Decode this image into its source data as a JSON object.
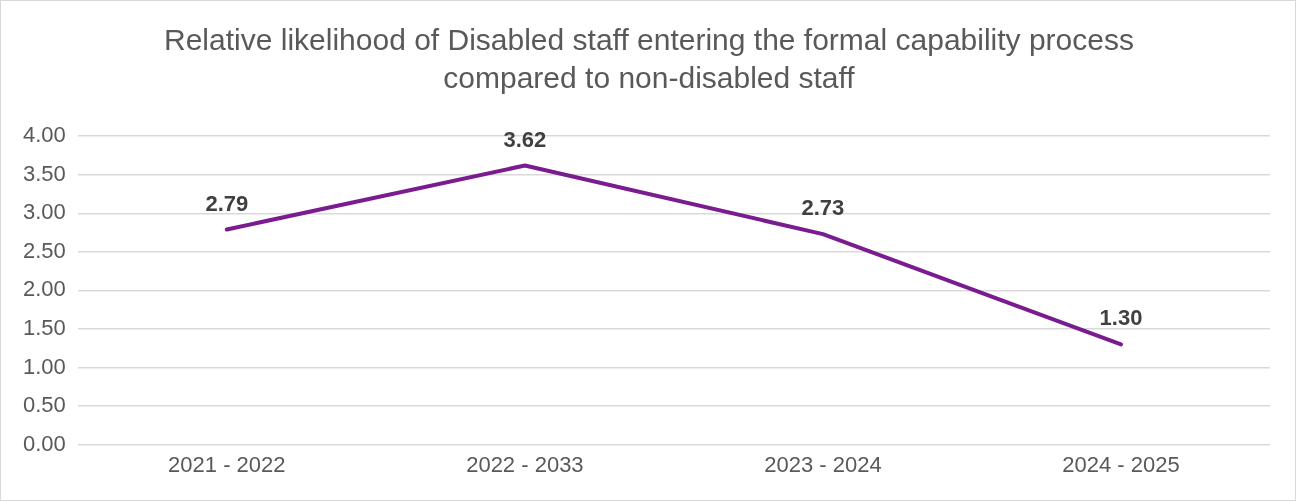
{
  "chart_data": {
    "type": "line",
    "title": "Relative likelihood of Disabled staff entering the formal capability process compared to non-disabled staff",
    "categories": [
      "2021 - 2022",
      "2022 - 2033",
      "2023 - 2024",
      "2024 - 2025"
    ],
    "series": [
      {
        "color": "#7a1b8f",
        "values": [
          2.79,
          3.62,
          2.73,
          1.3
        ]
      }
    ],
    "value_labels": [
      "2.79",
      "3.62",
      "2.73",
      "1.30"
    ],
    "ylim": [
      0,
      4
    ],
    "yticks": [
      {
        "value": 0,
        "label": "0.00"
      },
      {
        "value": 0.5,
        "label": "0.50"
      },
      {
        "value": 1,
        "label": "1.00"
      },
      {
        "value": 1.5,
        "label": "1.50"
      },
      {
        "value": 2,
        "label": "2.00"
      },
      {
        "value": 2.5,
        "label": "2.50"
      },
      {
        "value": 3,
        "label": "3.00"
      },
      {
        "value": 3.5,
        "label": "3.50"
      },
      {
        "value": 4,
        "label": "4.00"
      }
    ],
    "grid": "y",
    "legend": false,
    "marker": "none"
  }
}
